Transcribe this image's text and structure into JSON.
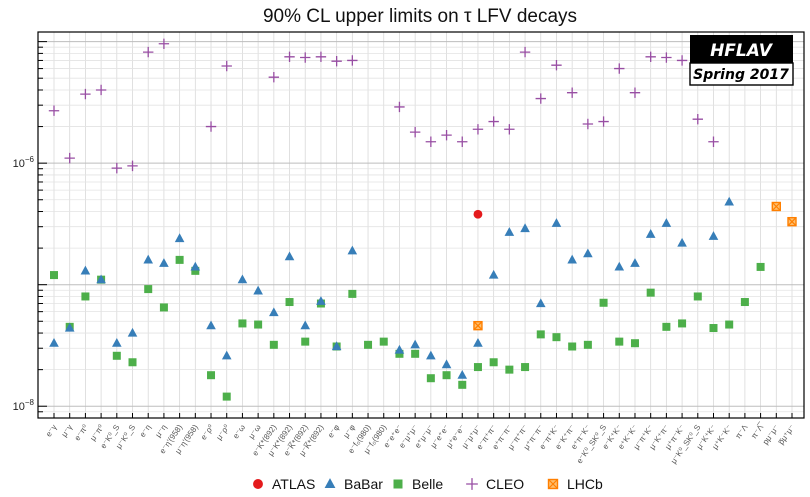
{
  "chart_data": {
    "type": "scatter",
    "title": "90% CL upper limits on τ LFV decays",
    "xlabel": "",
    "ylabel": "",
    "yscale": "log",
    "ylim": [
      8e-09,
      1.2e-05
    ],
    "yticks": [
      {
        "value": 1e-08,
        "label_base": "10",
        "label_exp": "−8"
      },
      {
        "value": 1e-06,
        "label_base": "10",
        "label_exp": "−6"
      }
    ],
    "categories": [
      "e⁻γ",
      "μ⁻γ",
      "e⁻π⁰",
      "μ⁻π⁰",
      "e⁻K⁰_S",
      "μ⁻K⁰_S",
      "e⁻η",
      "μ⁻η",
      "e⁻η'(958)",
      "μ⁻η'(958)",
      "e⁻ρ⁰",
      "μ⁻ρ⁰",
      "e⁻ω",
      "μ⁻ω",
      "e⁻K*(892)",
      "μ⁻K*(892)",
      "e⁻K̅*(892)",
      "μ⁻K̅*(892)",
      "e⁻φ",
      "μ⁻φ",
      "e⁻f₀(980)",
      "μ⁻f₀(980)",
      "e⁻e⁺e⁻",
      "e⁻μ⁺μ⁻",
      "e⁺μ⁻μ⁻",
      "μ⁻e⁺e⁻",
      "μ⁺e⁻e⁻",
      "μ⁻μ⁺μ⁻",
      "e⁻π⁺π⁻",
      "e⁺π⁻π⁻",
      "μ⁻π⁺π⁻",
      "μ⁺π⁻π⁻",
      "e⁻π⁺K⁻",
      "e⁻K⁺π⁻",
      "e⁺π⁻K⁻",
      "e⁻K⁰_SK⁰_S",
      "e⁻K⁺K⁻",
      "e⁺K⁻K⁻",
      "μ⁻π⁺K⁻",
      "μ⁻K⁺π⁻",
      "μ⁺π⁻K⁻",
      "μ⁻K⁰_SK⁰_S",
      "μ⁻K⁺K⁻",
      "μ⁺K⁻K⁻",
      "π⁻Λ",
      "π⁻Λ̅",
      "pμ⁻μ⁻",
      "p̅μ⁺μ⁻"
    ],
    "series": [
      {
        "name": "ATLAS",
        "marker": "circle",
        "color": "#e41a1c",
        "values": [
          null,
          null,
          null,
          null,
          null,
          null,
          null,
          null,
          null,
          null,
          null,
          null,
          null,
          null,
          null,
          null,
          null,
          null,
          null,
          null,
          null,
          null,
          null,
          null,
          null,
          null,
          null,
          3.8e-07,
          null,
          null,
          null,
          null,
          null,
          null,
          null,
          null,
          null,
          null,
          null,
          null,
          null,
          null,
          null,
          null,
          null,
          null,
          null,
          null
        ]
      },
      {
        "name": "BaBar",
        "marker": "triangle",
        "color": "#377eb8",
        "values": [
          3.3e-08,
          4.4e-08,
          1.3e-07,
          1.1e-07,
          3.3e-08,
          4e-08,
          1.6e-07,
          1.5e-07,
          2.4e-07,
          1.4e-07,
          4.6e-08,
          2.6e-08,
          1.1e-07,
          8.9e-08,
          5.9e-08,
          1.7e-07,
          4.6e-08,
          7.3e-08,
          3.1e-08,
          1.9e-07,
          null,
          null,
          2.9e-08,
          3.2e-08,
          2.6e-08,
          2.2e-08,
          1.8e-08,
          3.3e-08,
          1.2e-07,
          2.7e-07,
          2.9e-07,
          7e-08,
          3.2e-07,
          1.6e-07,
          1.8e-07,
          null,
          1.4e-07,
          1.5e-07,
          2.6e-07,
          3.2e-07,
          2.2e-07,
          null,
          2.5e-07,
          4.8e-07,
          null,
          null,
          null,
          null
        ]
      },
      {
        "name": "Belle",
        "marker": "square",
        "color": "#4daf4a",
        "values": [
          1.2e-07,
          4.5e-08,
          8e-08,
          1.1e-07,
          2.6e-08,
          2.3e-08,
          9.2e-08,
          6.5e-08,
          1.6e-07,
          1.3e-07,
          1.8e-08,
          1.2e-08,
          4.8e-08,
          4.7e-08,
          3.2e-08,
          7.2e-08,
          3.4e-08,
          7e-08,
          3.1e-08,
          8.4e-08,
          3.2e-08,
          3.4e-08,
          2.7e-08,
          2.7e-08,
          1.7e-08,
          1.8e-08,
          1.5e-08,
          2.1e-08,
          2.3e-08,
          2e-08,
          2.1e-08,
          3.9e-08,
          3.7e-08,
          3.1e-08,
          3.2e-08,
          7.1e-08,
          3.4e-08,
          3.3e-08,
          8.6e-08,
          4.5e-08,
          4.8e-08,
          8e-08,
          4.4e-08,
          4.7e-08,
          7.2e-08,
          1.4e-07,
          null,
          null
        ]
      },
      {
        "name": "CLEO",
        "marker": "plus",
        "color": "#984ea3",
        "values": [
          2.7e-06,
          1.1e-06,
          3.7e-06,
          4e-06,
          9.1e-07,
          9.5e-07,
          8.2e-06,
          9.6e-06,
          null,
          null,
          2e-06,
          6.3e-06,
          null,
          null,
          5.1e-06,
          7.5e-06,
          7.4e-06,
          7.5e-06,
          6.9e-06,
          7e-06,
          null,
          null,
          2.9e-06,
          1.8e-06,
          1.5e-06,
          1.7e-06,
          1.5e-06,
          1.9e-06,
          2.2e-06,
          1.9e-06,
          8.2e-06,
          3.4e-06,
          6.4e-06,
          3.8e-06,
          2.1e-06,
          2.2e-06,
          6e-06,
          3.8e-06,
          7.5e-06,
          7.4e-06,
          7e-06,
          2.3e-06,
          1.5e-06,
          5.8e-06,
          null,
          null,
          null,
          null
        ]
      },
      {
        "name": "LHCb",
        "marker": "square-x",
        "color": "#ff7f00",
        "values": [
          null,
          null,
          null,
          null,
          null,
          null,
          null,
          null,
          null,
          null,
          null,
          null,
          null,
          null,
          null,
          null,
          null,
          null,
          null,
          null,
          null,
          null,
          null,
          null,
          null,
          null,
          null,
          4.6e-08,
          null,
          null,
          null,
          null,
          null,
          null,
          null,
          null,
          null,
          null,
          null,
          null,
          null,
          null,
          null,
          null,
          null,
          null,
          4.4e-07,
          3.3e-07
        ]
      }
    ],
    "legend": {
      "placement": "bottom"
    }
  },
  "badge": {
    "top": "HFLAV",
    "bottom": "Spring 2017"
  }
}
